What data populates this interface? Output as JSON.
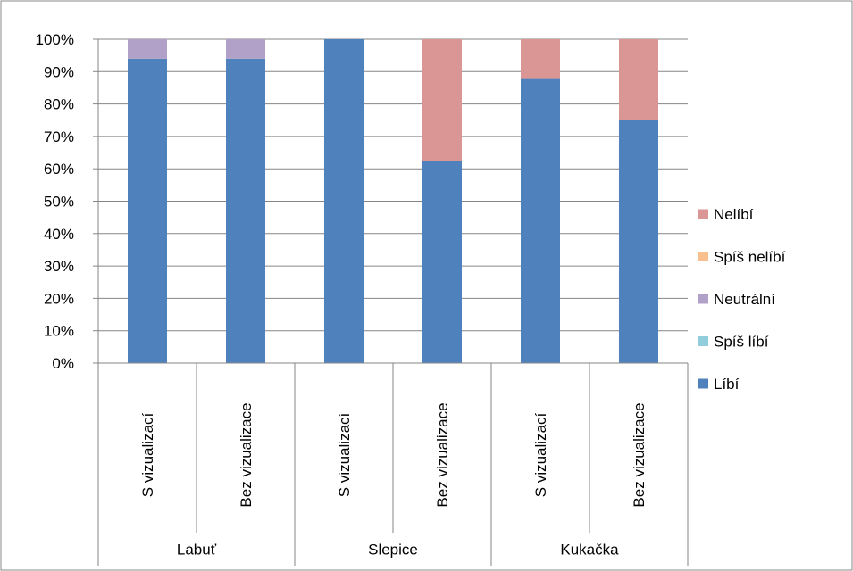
{
  "chart_data": {
    "type": "bar",
    "stacked": true,
    "percent": true,
    "groups": [
      {
        "label": "Labuť",
        "categories": [
          "S vizualizací",
          "Bez vizualizace"
        ]
      },
      {
        "label": "Slepice",
        "categories": [
          "S vizualizací",
          "Bez vizualizace"
        ]
      },
      {
        "label": "Kukačka",
        "categories": [
          "S vizualizací",
          "Bez vizualizace"
        ]
      }
    ],
    "categories": [
      "S vizualizací",
      "Bez vizualizace",
      "S vizualizací",
      "Bez vizualizace",
      "S vizualizací",
      "Bez vizualizace"
    ],
    "series": [
      {
        "name": "Líbí",
        "color": "#4f81bd",
        "values": [
          94,
          94,
          100,
          62.5,
          88,
          75
        ]
      },
      {
        "name": "Spíš líbí",
        "color": "#92cddc",
        "values": [
          0,
          0,
          0,
          0,
          0,
          0
        ]
      },
      {
        "name": "Neutrální",
        "color": "#b1a0c7",
        "values": [
          6,
          6,
          0,
          0,
          0,
          0
        ]
      },
      {
        "name": "Spíš nelíbí",
        "color": "#fabf8f",
        "values": [
          0,
          0,
          0,
          0,
          0,
          0
        ]
      },
      {
        "name": "Nelíbí",
        "color": "#d99694",
        "values": [
          0,
          0,
          0,
          37.5,
          12,
          25
        ]
      }
    ],
    "y_ticks": [
      "0%",
      "10%",
      "20%",
      "30%",
      "40%",
      "50%",
      "60%",
      "70%",
      "80%",
      "90%",
      "100%"
    ],
    "ylim": [
      0,
      100
    ],
    "legend_position": "right",
    "legend_order": [
      "Nelíbí",
      "Spíš nelíbí",
      "Neutrální",
      "Spíš líbí",
      "Líbí"
    ],
    "grid": true
  }
}
